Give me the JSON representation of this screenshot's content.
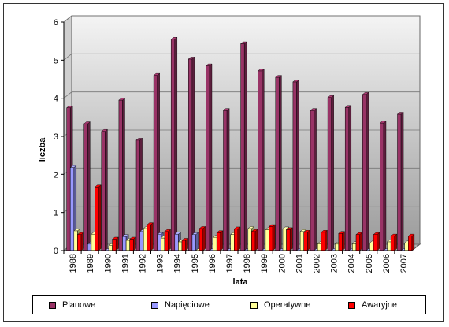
{
  "chart_data": {
    "type": "bar",
    "title": "",
    "xlabel": "lata",
    "ylabel": "liczba",
    "ylim": [
      0,
      6
    ],
    "yticks": [
      "0",
      "1",
      "2",
      "3",
      "4",
      "5",
      "6"
    ],
    "grid": true,
    "legend_position": "bottom",
    "categories": [
      "1988",
      "1989",
      "1990",
      "1991",
      "1992",
      "1993",
      "1994",
      "1995",
      "1996",
      "1997",
      "1998",
      "1999",
      "2000",
      "2001",
      "2002",
      "2003",
      "2004",
      "2005",
      "2006",
      "2007"
    ],
    "series": [
      {
        "name": "Planowe",
        "color": "#993366",
        "values": [
          3.75,
          3.33,
          3.13,
          3.95,
          2.9,
          4.6,
          5.55,
          5.03,
          4.85,
          3.68,
          5.43,
          4.72,
          4.55,
          4.43,
          3.68,
          4.02,
          3.76,
          4.1,
          3.35,
          3.58
        ]
      },
      {
        "name": "Napięciowe",
        "color": "#9999ff",
        "values": [
          2.18,
          0.17,
          0.0,
          0.37,
          0.5,
          0.42,
          0.43,
          0.42,
          0.0,
          0.0,
          0.0,
          0.0,
          0.0,
          0.0,
          0.0,
          0.0,
          0.0,
          0.0,
          0.0,
          0.0
        ]
      },
      {
        "name": "Operatywne",
        "color": "#ffff99",
        "values": [
          0.52,
          0.43,
          0.13,
          0.27,
          0.58,
          0.33,
          0.23,
          0.0,
          0.35,
          0.42,
          0.58,
          0.55,
          0.57,
          0.5,
          0.18,
          0.17,
          0.18,
          0.2,
          0.23,
          0.2
        ]
      },
      {
        "name": "Awaryjne",
        "color": "#ff0000",
        "values": [
          0.42,
          1.67,
          0.3,
          0.3,
          0.68,
          0.5,
          0.27,
          0.58,
          0.47,
          0.57,
          0.5,
          0.63,
          0.55,
          0.48,
          0.48,
          0.45,
          0.42,
          0.42,
          0.38,
          0.38
        ]
      }
    ]
  }
}
